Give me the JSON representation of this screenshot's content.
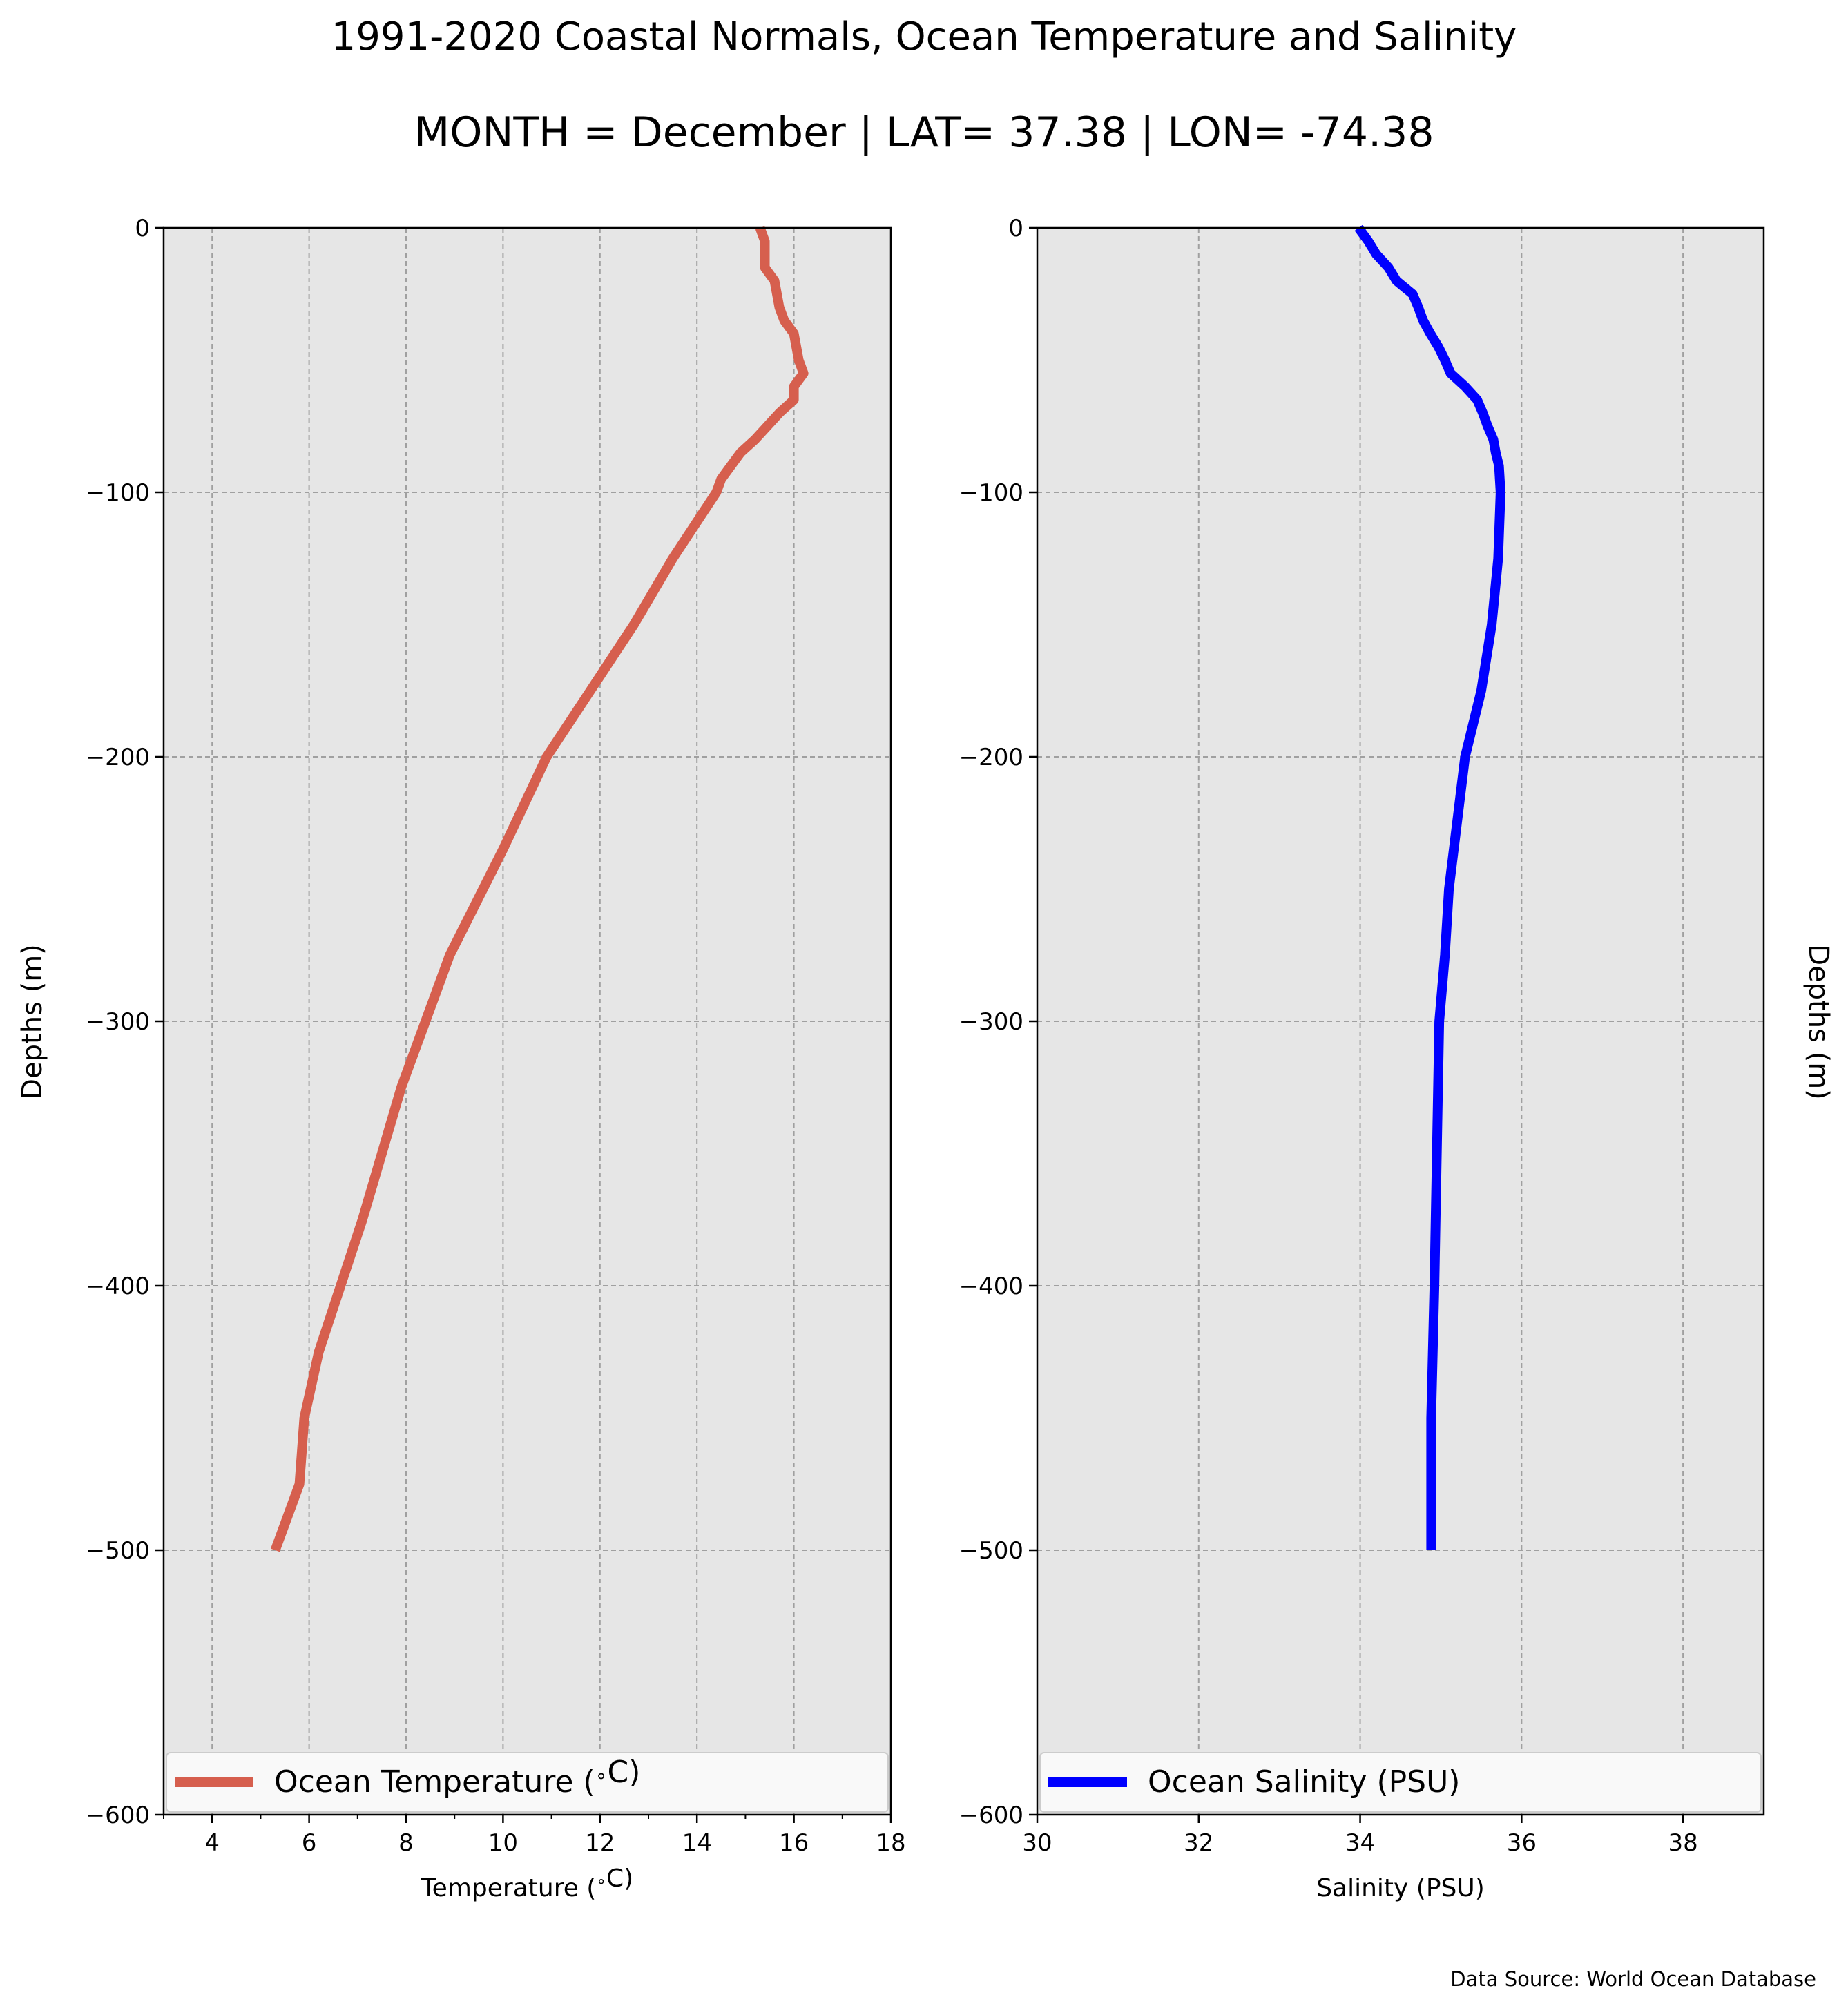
{
  "title": "1991-2020 Coastal Normals, Ocean Temperature and Salinity",
  "subtitle": "MONTH = December | LAT= 37.38 | LON= -74.38",
  "source": "Data Source: World Ocean Database",
  "colors": {
    "temperature": "#d65f4e",
    "salinity": "#0000ff",
    "panel_bg": "#e6e6e6"
  },
  "chart_data": [
    {
      "type": "line",
      "xlabel": "Temperature ($^\\circ$C)",
      "ylabel": "Depths (m)",
      "xlim": [
        3,
        18
      ],
      "ylim": [
        -600,
        0
      ],
      "xticks": [
        4,
        6,
        8,
        10,
        12,
        14,
        16,
        18
      ],
      "yticks": [
        0,
        -100,
        -200,
        -300,
        -400,
        -500,
        -600
      ],
      "ytick_labels": [
        "0",
        "−100",
        "−200",
        "−300",
        "−400",
        "−500",
        "−600"
      ],
      "grid": true,
      "legend_position": "bottom",
      "series": [
        {
          "name": "Ocean Temperature ($^\\circ$C)",
          "x": [
            15.3,
            15.4,
            15.4,
            15.6,
            15.7,
            15.8,
            16.0,
            16.1,
            16.2,
            16.0,
            16.0,
            15.7,
            15.2,
            14.9,
            14.7,
            14.5,
            14.4,
            13.5,
            12.7,
            11.8,
            10.9,
            10.0,
            8.9,
            7.9,
            7.1,
            6.2,
            5.9,
            5.8,
            5.3
          ],
          "y": [
            0,
            -5,
            -15,
            -20,
            -30,
            -35,
            -40,
            -50,
            -55,
            -60,
            -65,
            -70,
            -80,
            -85,
            -90,
            -95,
            -100,
            -125,
            -150,
            -175,
            -200,
            -235,
            -275,
            -325,
            -375,
            -425,
            -450,
            -475,
            -500
          ]
        }
      ]
    },
    {
      "type": "line",
      "xlabel": "Salinity (PSU)",
      "ylabel": "Depths (m)",
      "xlim": [
        30,
        39
      ],
      "ylim": [
        -600,
        0
      ],
      "xticks": [
        30,
        32,
        34,
        36,
        38
      ],
      "yticks": [
        0,
        -100,
        -200,
        -300,
        -400,
        -500,
        -600
      ],
      "ytick_labels": [
        "0",
        "−100",
        "−200",
        "−300",
        "−400",
        "−500",
        "−600"
      ],
      "grid": true,
      "legend_position": "bottom",
      "series": [
        {
          "name": "Ocean Salinity (PSU)",
          "x": [
            33.98,
            34.1,
            34.2,
            34.35,
            34.45,
            34.65,
            34.72,
            34.78,
            34.87,
            34.97,
            35.05,
            35.12,
            35.3,
            35.45,
            35.52,
            35.58,
            35.65,
            35.68,
            35.72,
            35.74,
            35.71,
            35.63,
            35.5,
            35.3,
            35.1,
            35.05,
            34.98,
            34.95,
            34.92,
            34.88,
            34.88,
            34.88
          ],
          "y": [
            0,
            -5,
            -10,
            -15,
            -20,
            -25,
            -30,
            -35,
            -40,
            -45,
            -50,
            -55,
            -60,
            -65,
            -70,
            -75,
            -80,
            -85,
            -90,
            -100,
            -125,
            -150,
            -175,
            -200,
            -250,
            -275,
            -300,
            -350,
            -400,
            -450,
            -475,
            -500
          ]
        }
      ]
    }
  ]
}
